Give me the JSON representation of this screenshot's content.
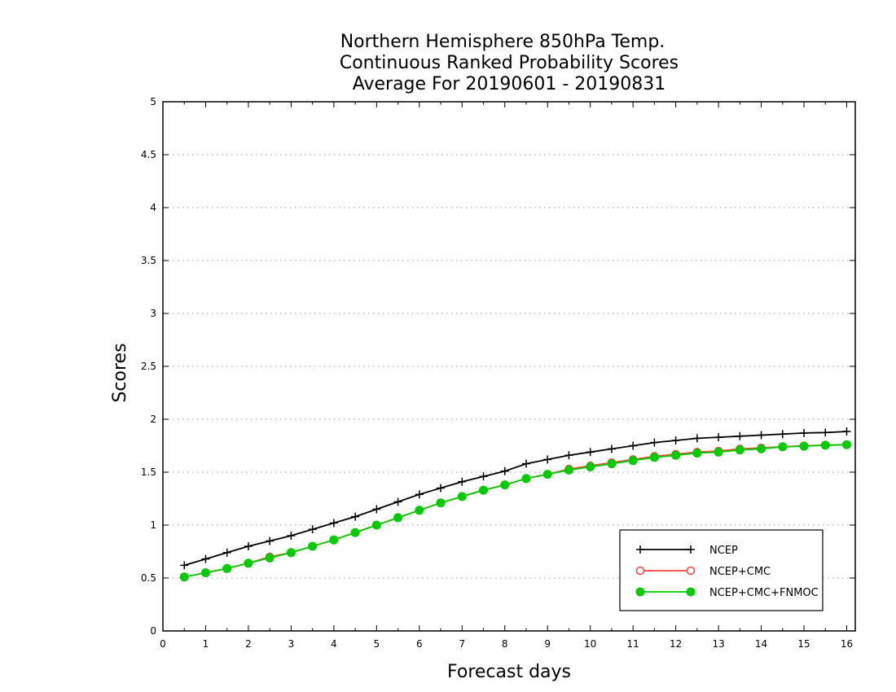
{
  "chart_data": {
    "type": "line",
    "title": [
      "Northern Hemisphere 850hPa Temp.",
      "Continuous Ranked Probability Scores",
      "Average For 20190601 - 20190831"
    ],
    "xlabel": "Forecast days",
    "ylabel": "Scores",
    "xlim": [
      0,
      16.2
    ],
    "ylim": [
      0,
      5
    ],
    "xticks": [
      "0",
      "1",
      "2",
      "3",
      "4",
      "5",
      "6",
      "7",
      "8",
      "9",
      "10",
      "11",
      "12",
      "13",
      "14",
      "15",
      "16"
    ],
    "yticks": [
      "0",
      "0.5",
      "1",
      "1.5",
      "2",
      "2.5",
      "3",
      "3.5",
      "4",
      "4.5",
      "5"
    ],
    "grid": true,
    "legend_position": "bottom-right",
    "x": [
      0.5,
      1,
      1.5,
      2,
      2.5,
      3,
      3.5,
      4,
      4.5,
      5,
      5.5,
      6,
      6.5,
      7,
      7.5,
      8,
      8.5,
      9,
      9.5,
      10,
      10.5,
      11,
      11.5,
      12,
      12.5,
      13,
      13.5,
      14,
      14.5,
      15,
      15.5,
      16
    ],
    "series": [
      {
        "name": "NCEP",
        "color": "#000000",
        "marker": "plus",
        "values": [
          0.62,
          0.68,
          0.74,
          0.8,
          0.85,
          0.9,
          0.96,
          1.02,
          1.08,
          1.15,
          1.22,
          1.29,
          1.35,
          1.41,
          1.46,
          1.51,
          1.58,
          1.62,
          1.66,
          1.69,
          1.72,
          1.75,
          1.78,
          1.8,
          1.82,
          1.83,
          1.84,
          1.85,
          1.86,
          1.87,
          1.875,
          1.885
        ]
      },
      {
        "name": "NCEP+CMC",
        "color": "#ff4040",
        "marker": "open-circle",
        "values": [
          0.51,
          0.55,
          0.59,
          0.64,
          0.7,
          0.74,
          0.8,
          0.86,
          0.93,
          1.0,
          1.07,
          1.14,
          1.21,
          1.27,
          1.33,
          1.38,
          1.44,
          1.48,
          1.53,
          1.56,
          1.59,
          1.62,
          1.65,
          1.67,
          1.69,
          1.7,
          1.72,
          1.73,
          1.74,
          1.75,
          1.755,
          1.76
        ]
      },
      {
        "name": "NCEP+CMC+FNMOC",
        "color": "#00cc00",
        "marker": "filled-circle",
        "values": [
          0.51,
          0.55,
          0.59,
          0.64,
          0.69,
          0.74,
          0.8,
          0.86,
          0.93,
          1.0,
          1.07,
          1.14,
          1.21,
          1.27,
          1.33,
          1.38,
          1.44,
          1.48,
          1.52,
          1.55,
          1.58,
          1.61,
          1.64,
          1.66,
          1.68,
          1.69,
          1.71,
          1.72,
          1.74,
          1.745,
          1.755,
          1.76
        ]
      }
    ]
  }
}
